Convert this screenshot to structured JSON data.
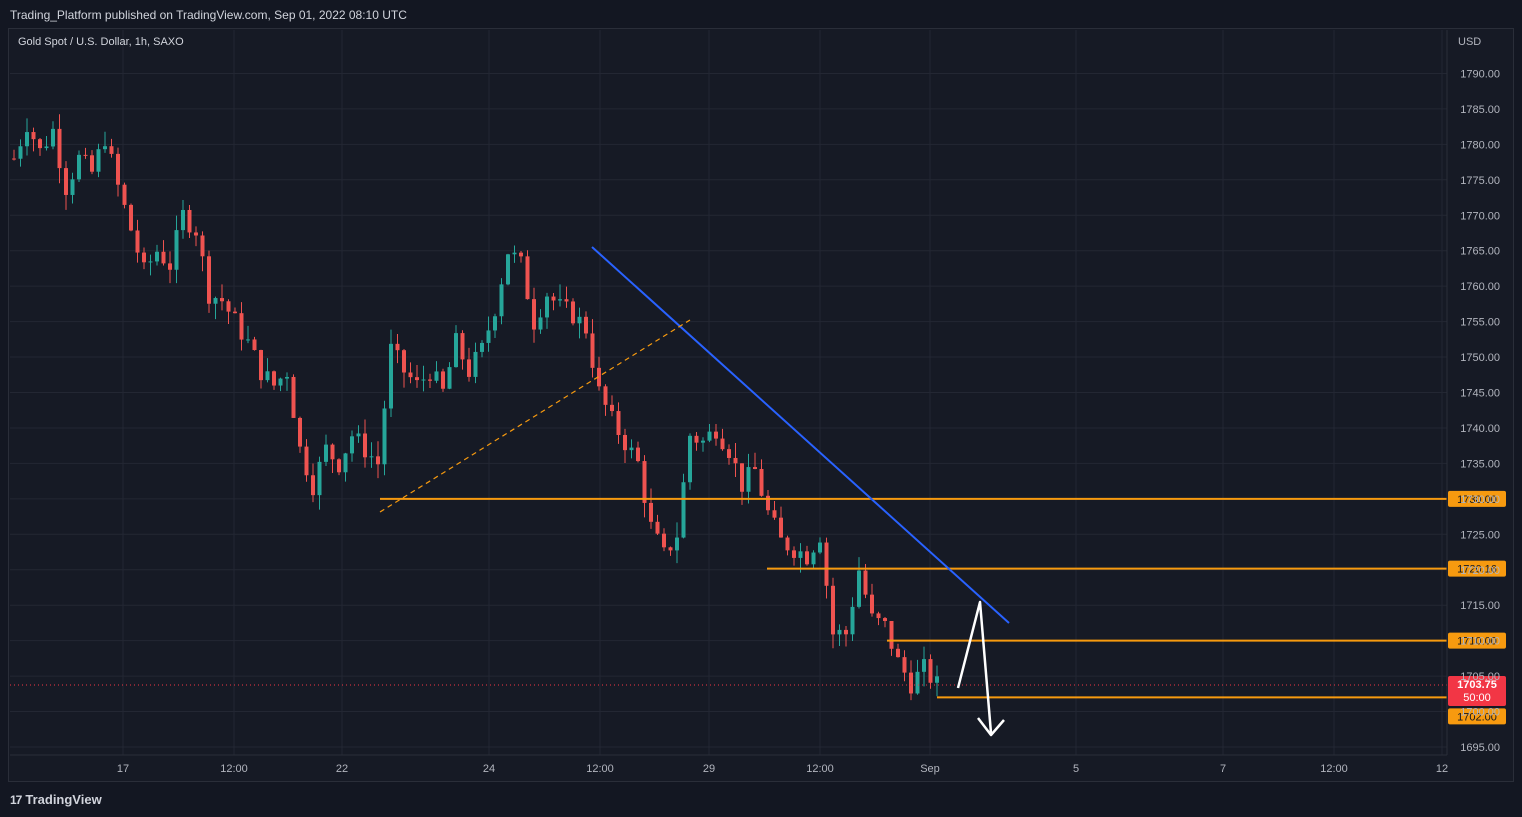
{
  "header": {
    "publisher": "Trading_Platform published on TradingView.com, Sep 01, 2022 08:10 UTC",
    "symbol": "Gold Spot / U.S. Dollar, 1h, SAXO"
  },
  "footer": {
    "logo_text": "TradingView",
    "logo_mark": "17"
  },
  "colors": {
    "background": "#161a25",
    "grid": "#232733",
    "up": "#26a69a",
    "down": "#ef5350",
    "trendline": "#2962ff",
    "level": "#f79a0f",
    "arrow": "#ffffff",
    "last_price": "#f23645"
  },
  "chart_data": {
    "type": "candlestick",
    "symbol": "Gold Spot / U.S. Dollar",
    "interval": "1h",
    "source": "SAXO",
    "currency": "USD",
    "ylim": [
      1693,
      1796
    ],
    "y_ticks": [
      "1790.00",
      "1785.00",
      "1780.00",
      "1775.00",
      "1770.00",
      "1765.00",
      "1760.00",
      "1755.00",
      "1750.00",
      "1745.00",
      "1740.00",
      "1735.00",
      "1730.00",
      "1725.00",
      "1720.00",
      "1715.00",
      "1710.00",
      "1705.00",
      "1700.00",
      "1695.00"
    ],
    "x_ticks": [
      "17",
      "12:00",
      "22",
      "24",
      "12:00",
      "29",
      "12:00",
      "Sep",
      "5",
      "7",
      "12:00",
      "12"
    ],
    "price_path": [
      [
        0,
        1778
      ],
      [
        2,
        1783
      ],
      [
        4,
        1779
      ],
      [
        6,
        1782
      ],
      [
        8,
        1774
      ],
      [
        10,
        1778
      ],
      [
        12,
        1776
      ],
      [
        14,
        1781
      ],
      [
        16,
        1774
      ],
      [
        18,
        1768
      ],
      [
        20,
        1762
      ],
      [
        22,
        1765
      ],
      [
        24,
        1763
      ],
      [
        26,
        1770
      ],
      [
        28,
        1768
      ],
      [
        30,
        1759
      ],
      [
        32,
        1758
      ],
      [
        34,
        1755
      ],
      [
        36,
        1752
      ],
      [
        38,
        1748
      ],
      [
        40,
        1746
      ],
      [
        42,
        1748
      ],
      [
        44,
        1737
      ],
      [
        46,
        1732
      ],
      [
        48,
        1737
      ],
      [
        50,
        1735
      ],
      [
        52,
        1739
      ],
      [
        54,
        1737
      ],
      [
        56,
        1735
      ],
      [
        58,
        1751
      ],
      [
        60,
        1748
      ],
      [
        62,
        1746
      ],
      [
        64,
        1748
      ],
      [
        66,
        1745
      ],
      [
        68,
        1752
      ],
      [
        70,
        1748
      ],
      [
        72,
        1751
      ],
      [
        74,
        1757
      ],
      [
        76,
        1765
      ],
      [
        78,
        1763
      ],
      [
        80,
        1755
      ],
      [
        82,
        1759
      ],
      [
        84,
        1757
      ],
      [
        86,
        1756
      ],
      [
        88,
        1754
      ],
      [
        90,
        1745
      ],
      [
        92,
        1741
      ],
      [
        94,
        1738
      ],
      [
        96,
        1735
      ],
      [
        98,
        1726
      ],
      [
        100,
        1722
      ],
      [
        102,
        1725
      ],
      [
        104,
        1739
      ],
      [
        106,
        1738
      ],
      [
        108,
        1740
      ],
      [
        110,
        1737
      ],
      [
        112,
        1732
      ],
      [
        114,
        1734
      ],
      [
        116,
        1728
      ],
      [
        118,
        1724
      ],
      [
        120,
        1723
      ],
      [
        122,
        1722
      ],
      [
        124,
        1725
      ],
      [
        126,
        1711
      ],
      [
        128,
        1711
      ],
      [
        130,
        1720
      ],
      [
        132,
        1713
      ],
      [
        134,
        1712
      ],
      [
        136,
        1707
      ],
      [
        138,
        1704
      ],
      [
        140,
        1706
      ],
      [
        142,
        1703.75
      ]
    ],
    "levels": [
      {
        "label": "1730.00",
        "value": 1730.0
      },
      {
        "label": "1720.16",
        "value": 1720.16
      },
      {
        "label": "1710.00",
        "value": 1710.0
      },
      {
        "label": "1702.00",
        "value": 1702.0
      }
    ],
    "last_price": {
      "label": "1703.75",
      "value": 1703.75,
      "countdown": "50:00"
    },
    "trendline": {
      "from": [
        88,
        1766
      ],
      "to": [
        160,
        1712
      ]
    },
    "support_line": {
      "from": [
        52,
        1728
      ],
      "to": [
        100,
        1755
      ]
    }
  }
}
